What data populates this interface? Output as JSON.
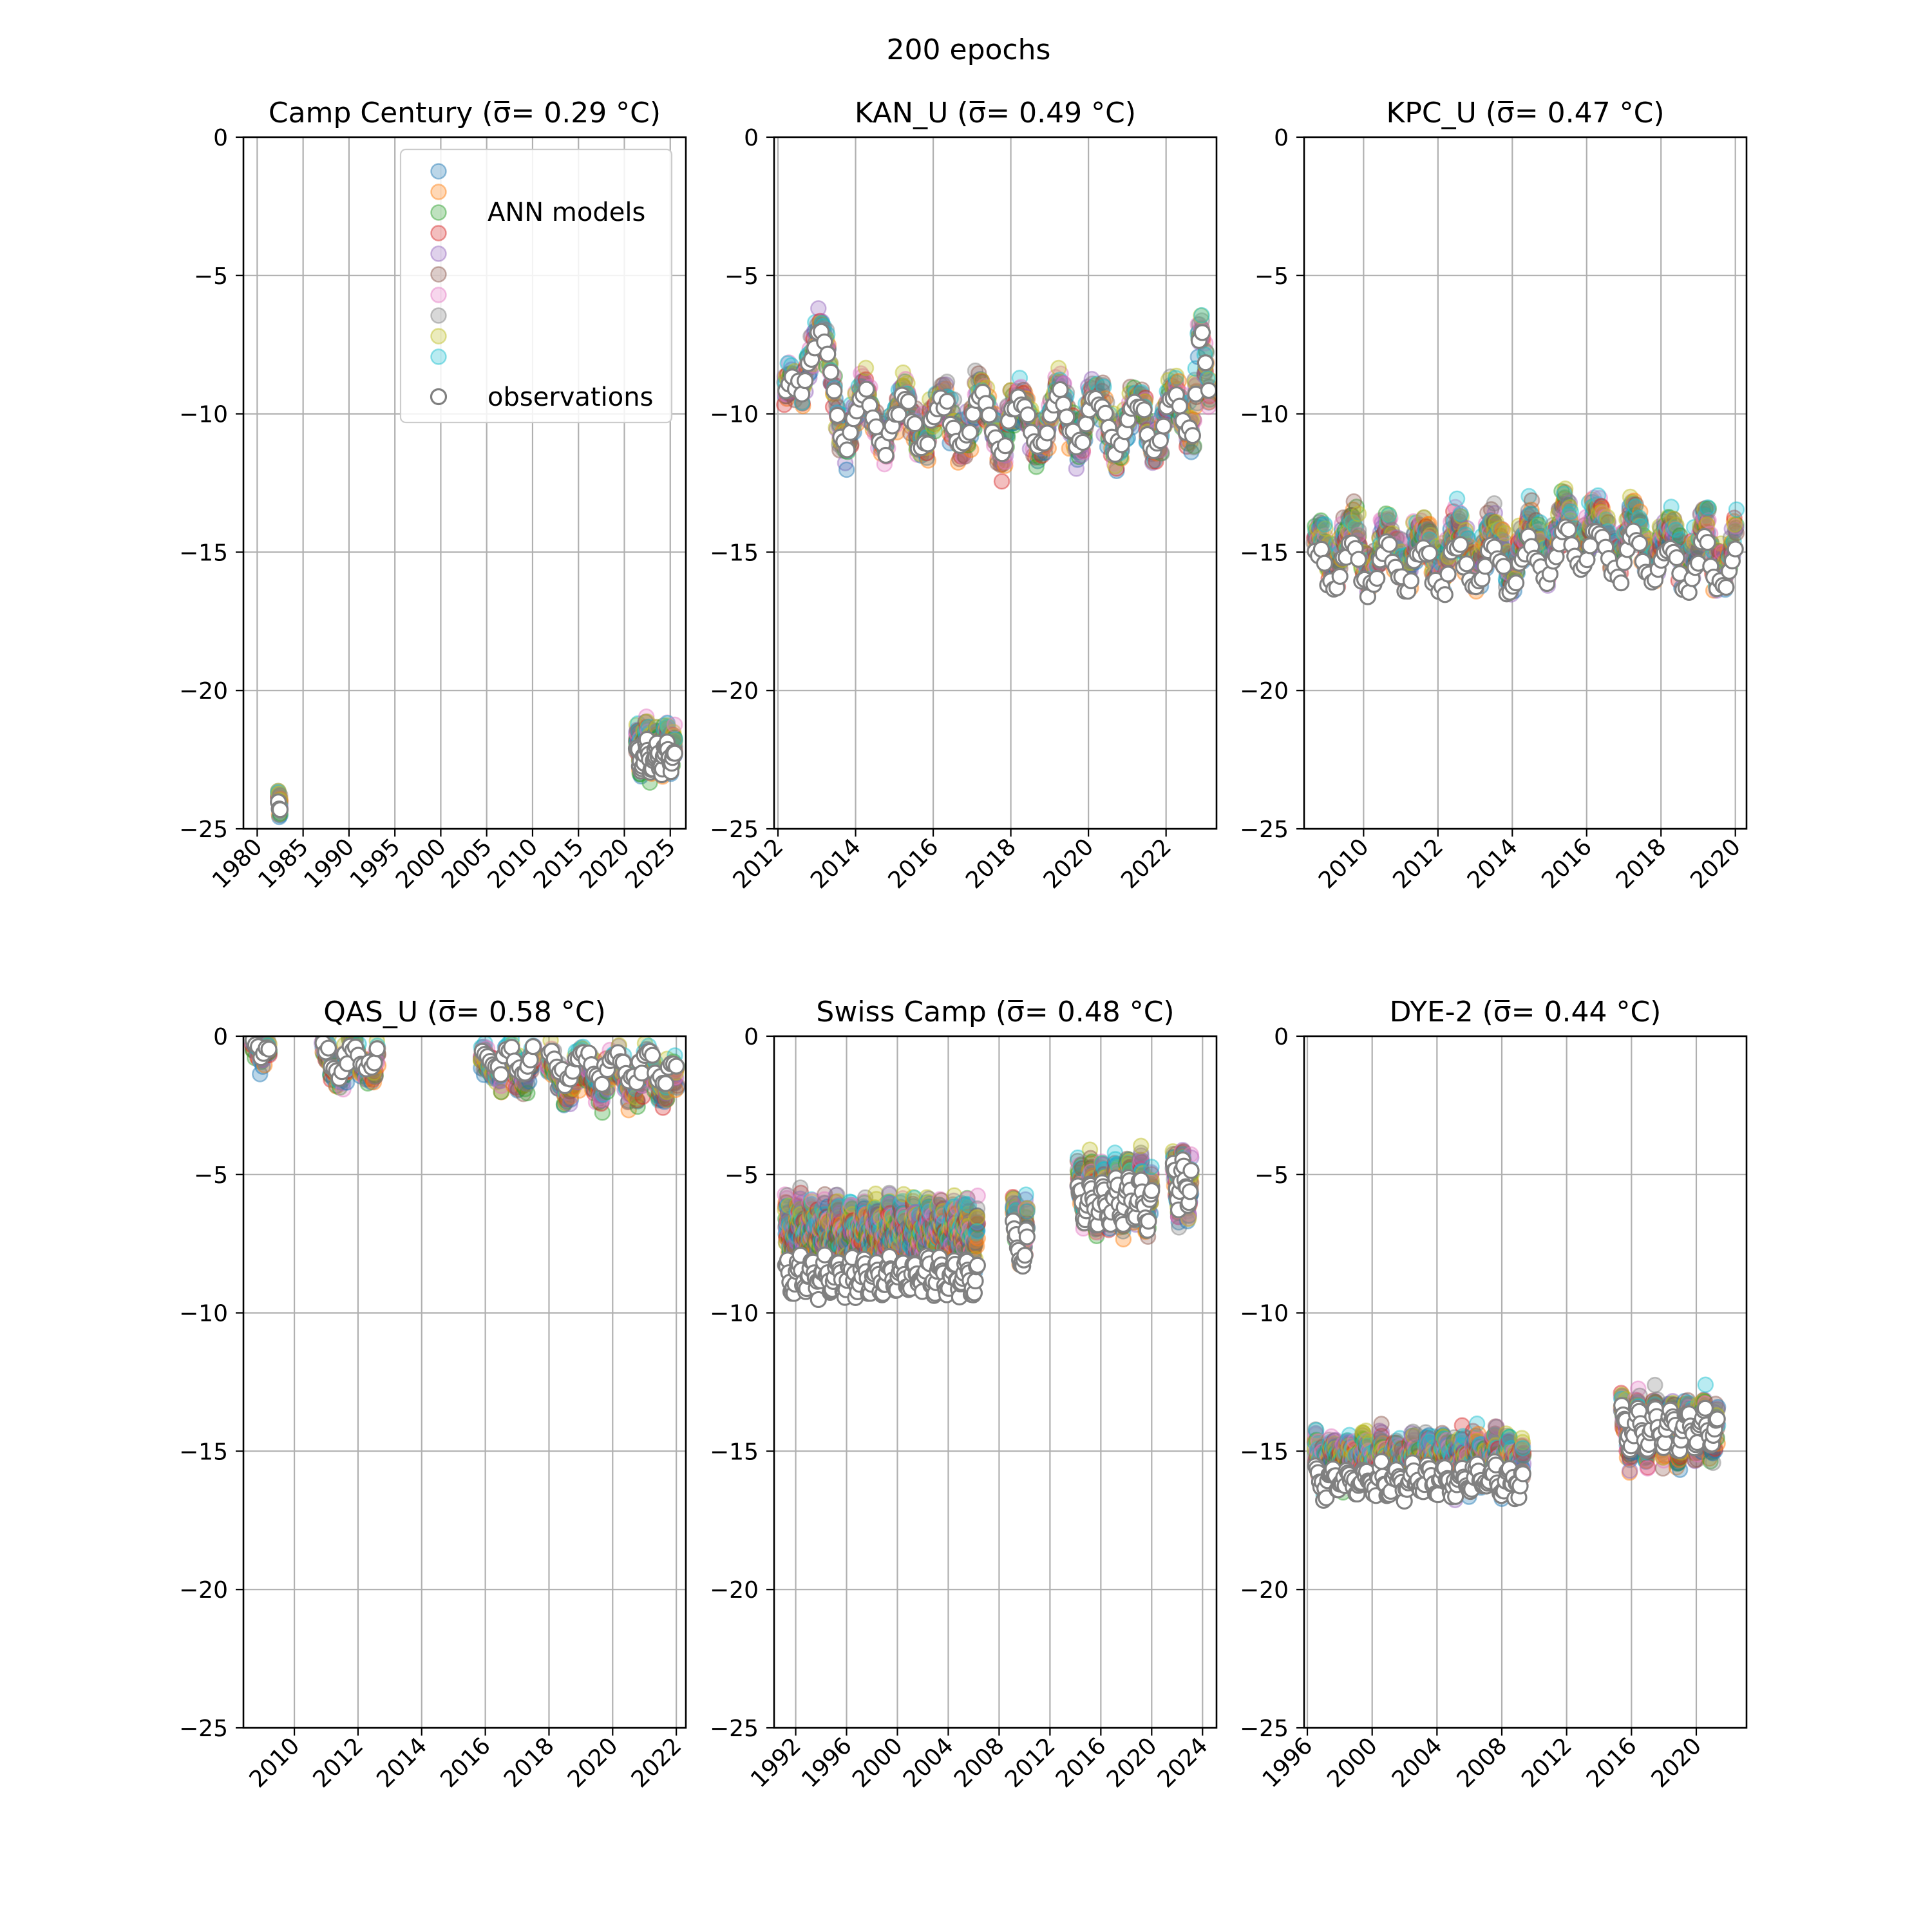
{
  "figure": {
    "title": "200 epochs"
  },
  "legend": {
    "models_label": "ANN models",
    "observations_label": "observations",
    "colors": [
      "#1f77b4",
      "#ff7f0e",
      "#2ca02c",
      "#d62728",
      "#9467bd",
      "#8c564b",
      "#e377c2",
      "#7f7f7f",
      "#bcbd22",
      "#17becf"
    ],
    "observation_color": "#808080"
  },
  "chart_data": [
    {
      "type": "scatter",
      "title": "Camp Century (σ̅= 0.29 °C)",
      "xlim": [
        1978.5,
        2026.7
      ],
      "ylim": [
        -25,
        0
      ],
      "xticks": [
        1980,
        1985,
        1990,
        1995,
        2000,
        2005,
        2010,
        2015,
        2020,
        2025
      ],
      "yticks": [
        0,
        -5,
        -10,
        -15,
        -20,
        -25
      ],
      "segments": [
        {
          "start": 1982.3,
          "end": 1982.5,
          "base": -24.3,
          "amp": 0.1,
          "cycles": 1,
          "model_offset": 0.2,
          "spread": 0.4
        },
        {
          "start": 2021.3,
          "end": 2025.5,
          "base": -22.4,
          "amp": 0.4,
          "cycles": 4,
          "model_offset": 0.3,
          "spread": 0.7
        }
      ]
    },
    {
      "type": "scatter",
      "title": "KAN_U (σ̅= 0.49 °C)",
      "xlim": [
        2011.9,
        2023.3
      ],
      "ylim": [
        -25,
        0
      ],
      "xticks": [
        2012,
        2014,
        2016,
        2018,
        2020,
        2022
      ],
      "yticks": [
        0,
        -5,
        -10,
        -15,
        -20,
        -25
      ],
      "segments": [
        {
          "start": 2012.2,
          "end": 2023.1,
          "base": -10.3,
          "amp": 0.9,
          "cycles": 11,
          "model_offset": 0.1,
          "spread": 0.9,
          "bumps": [
            [
              2012.9,
              2.9,
              0.45
            ],
            [
              2022.9,
              3.8,
              0.15
            ]
          ]
        }
      ]
    },
    {
      "type": "scatter",
      "title": "KPC_U (σ̅= 0.47 °C)",
      "xlim": [
        2008.4,
        2020.3
      ],
      "ylim": [
        -25,
        0
      ],
      "xticks": [
        2010,
        2012,
        2014,
        2016,
        2018,
        2020
      ],
      "yticks": [
        0,
        -5,
        -10,
        -15,
        -20,
        -25
      ],
      "segments": [
        {
          "start": 2008.7,
          "end": 2020.0,
          "base": -15.6,
          "amp": 0.8,
          "cycles": 12,
          "model_offset": 0.7,
          "spread": 0.9,
          "bumps": [
            [
              2015.8,
              0.8,
              1.0
            ],
            [
              2017.4,
              0.3,
              0.7
            ]
          ]
        }
      ]
    },
    {
      "type": "scatter",
      "title": "QAS_U (σ̅= 0.58 °C)",
      "xlim": [
        2008.4,
        2022.3
      ],
      "ylim": [
        -25,
        0
      ],
      "xticks": [
        2010,
        2012,
        2014,
        2016,
        2018,
        2020,
        2022
      ],
      "yticks": [
        0,
        -5,
        -10,
        -15,
        -20,
        -25
      ],
      "segments": [
        {
          "start": 2008.7,
          "end": 2009.2,
          "base": -0.5,
          "amp": 0.2,
          "cycles": 1,
          "model_offset": 0.0,
          "spread": 0.5
        },
        {
          "start": 2010.9,
          "end": 2012.6,
          "base": -0.9,
          "amp": 0.4,
          "cycles": 2,
          "model_offset": -0.1,
          "spread": 0.6
        },
        {
          "start": 2015.9,
          "end": 2017.5,
          "base": -0.9,
          "amp": 0.4,
          "cycles": 2,
          "model_offset": -0.2,
          "spread": 0.7
        },
        {
          "start": 2018.0,
          "end": 2022.0,
          "base": -1.1,
          "amp": 0.5,
          "cycles": 4,
          "model_offset": -0.3,
          "spread": 0.7
        }
      ]
    },
    {
      "type": "scatter",
      "title": "Swiss Camp (σ̅= 0.48 °C)",
      "xlim": [
        1990.3,
        2025.1
      ],
      "ylim": [
        -25,
        0
      ],
      "xticks": [
        1992,
        1996,
        2000,
        2004,
        2008,
        2012,
        2016,
        2020,
        2024
      ],
      "yticks": [
        0,
        -5,
        -10,
        -15,
        -20,
        -25
      ],
      "segments": [
        {
          "start": 1991.2,
          "end": 2006.3,
          "base": -8.7,
          "amp": 0.5,
          "cycles": 15,
          "model_offset": 1.6,
          "spread": 1.0
        },
        {
          "start": 2009.1,
          "end": 2010.2,
          "base": -7.6,
          "amp": 0.7,
          "cycles": 1,
          "model_offset": 0.5,
          "spread": 0.7
        },
        {
          "start": 2014.2,
          "end": 2020.0,
          "base": -6.0,
          "amp": 0.7,
          "cycles": 6,
          "model_offset": 0.3,
          "spread": 0.9
        },
        {
          "start": 2021.7,
          "end": 2023.1,
          "base": -5.2,
          "amp": 0.6,
          "cycles": 2,
          "model_offset": 0.0,
          "spread": 0.8
        }
      ]
    },
    {
      "type": "scatter",
      "title": "DYE-2 (σ̅= 0.44 °C)",
      "xlim": [
        1995.8,
        2023.1
      ],
      "ylim": [
        -25,
        0
      ],
      "xticks": [
        1996,
        2000,
        2004,
        2008,
        2012,
        2016,
        2020
      ],
      "yticks": [
        0,
        -5,
        -10,
        -15,
        -20,
        -25
      ],
      "segments": [
        {
          "start": 1996.5,
          "end": 2009.3,
          "base": -16.1,
          "amp": 0.4,
          "cycles": 13,
          "model_offset": 0.7,
          "spread": 0.9
        },
        {
          "start": 2015.4,
          "end": 2021.3,
          "base": -14.2,
          "amp": 0.6,
          "cycles": 6,
          "model_offset": 0.0,
          "spread": 0.9
        }
      ]
    }
  ]
}
